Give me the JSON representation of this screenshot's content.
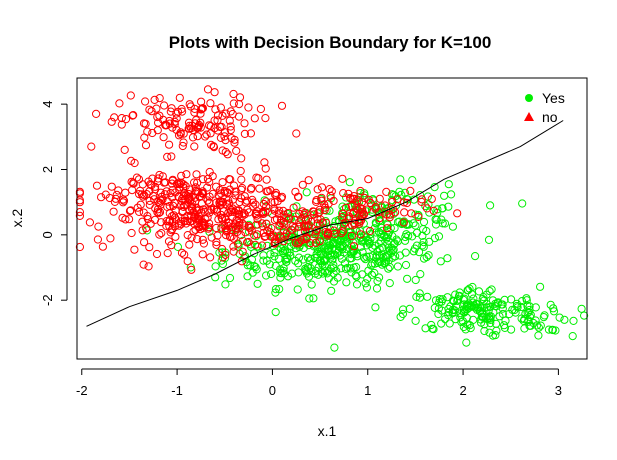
{
  "chart_data": {
    "type": "scatter",
    "title": "Plots with Decision Boundary for K=100",
    "xlabel": "x.1",
    "ylabel": "x.2",
    "xlim": [
      -2.05,
      3.3
    ],
    "ylim": [
      -3.8,
      4.8
    ],
    "x_ticks": [
      -2,
      -1,
      0,
      1,
      2,
      3
    ],
    "y_ticks": [
      -2,
      0,
      2,
      4
    ],
    "grid": false,
    "legend_position": "top-right",
    "legend": [
      {
        "label": "Yes",
        "color": "#00ee00",
        "marker": "filled-circle"
      },
      {
        "label": "no",
        "color": "#ff0000",
        "marker": "filled-triangle"
      }
    ],
    "series": [
      {
        "name": "Yes",
        "color": "#00ee00",
        "marker": "open-circle",
        "clusters": [
          {
            "center": [
              0.6,
              -0.5
            ],
            "spread": [
              0.55,
              0.55
            ],
            "n": 420
          },
          {
            "center": [
              1.2,
              0.6
            ],
            "spread": [
              0.45,
              0.45
            ],
            "n": 130
          },
          {
            "center": [
              2.1,
              -2.3
            ],
            "spread": [
              0.35,
              0.35
            ],
            "n": 150
          },
          {
            "center": [
              2.7,
              -2.5
            ],
            "spread": [
              0.25,
              0.3
            ],
            "n": 40
          }
        ],
        "points": [
          [
            0.65,
            -3.45
          ],
          [
            1.85,
            1.55
          ],
          [
            -0.6,
            -1.3
          ],
          [
            2.9,
            -2.9
          ],
          [
            3.15,
            -3.1
          ]
        ]
      },
      {
        "name": "no",
        "color": "#ff0000",
        "marker": "open-circle",
        "clusters": [
          {
            "center": [
              -0.9,
              3.4
            ],
            "spread": [
              0.35,
              0.45
            ],
            "n": 130
          },
          {
            "center": [
              -0.6,
              0.5
            ],
            "spread": [
              0.55,
              0.5
            ],
            "n": 320
          },
          {
            "center": [
              -0.9,
              1.3
            ],
            "spread": [
              0.5,
              0.4
            ],
            "n": 130
          },
          {
            "center": [
              0.9,
              0.8
            ],
            "spread": [
              0.35,
              0.35
            ],
            "n": 90
          },
          {
            "center": [
              0.2,
              0.2
            ],
            "spread": [
              0.35,
              0.3
            ],
            "n": 60
          }
        ],
        "points": [
          [
            -2.05,
            1.0
          ],
          [
            -1.9,
            2.7
          ],
          [
            -1.85,
            3.7
          ],
          [
            0.1,
            3.95
          ],
          [
            -1.55,
            2.6
          ],
          [
            -0.35,
            4.0
          ],
          [
            0.25,
            3.1
          ],
          [
            0.6,
            1.4
          ]
        ]
      }
    ],
    "decision_boundary": {
      "x": [
        -1.95,
        -1.5,
        -1.0,
        -0.6,
        -0.2,
        0.2,
        0.6,
        1.0,
        1.4,
        1.8,
        2.2,
        2.6,
        3.05
      ],
      "y": [
        -2.8,
        -2.2,
        -1.7,
        -1.2,
        -0.6,
        -0.1,
        0.3,
        0.5,
        1.0,
        1.7,
        2.2,
        2.7,
        3.5
      ]
    }
  }
}
